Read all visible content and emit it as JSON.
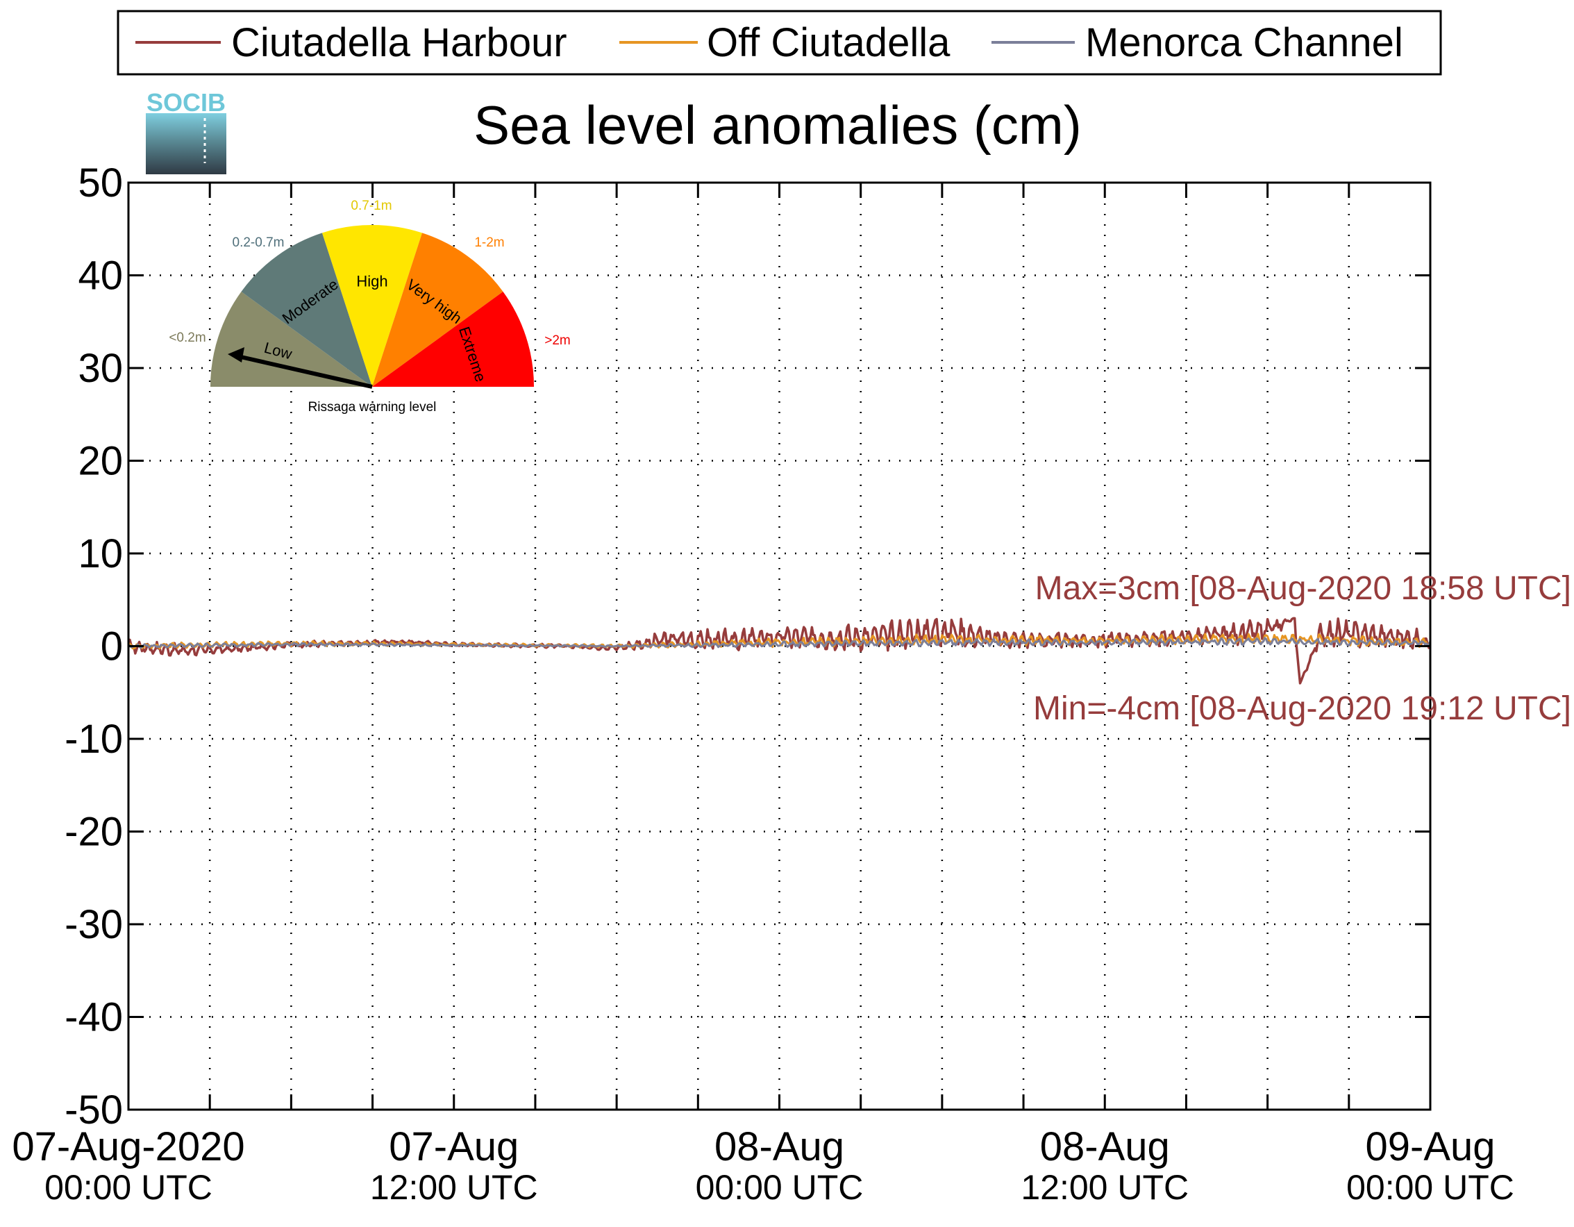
{
  "chart_data": {
    "type": "line",
    "title": "Sea level anomalies (cm)",
    "xlabel": "",
    "ylabel": "",
    "ylim": [
      -50,
      50
    ],
    "yticks": [
      50,
      40,
      30,
      20,
      10,
      0,
      -10,
      -20,
      -30,
      -40,
      -50
    ],
    "xlim": [
      "07-Aug-2020 00:00 UTC",
      "09-Aug-2020 00:00 UTC"
    ],
    "xtick_labels": [
      {
        "date": "07-Aug-2020",
        "time": "00:00 UTC"
      },
      {
        "date": "07-Aug",
        "time": "12:00 UTC"
      },
      {
        "date": "08-Aug",
        "time": "00:00 UTC"
      },
      {
        "date": "08-Aug",
        "time": "12:00 UTC"
      },
      {
        "date": "09-Aug",
        "time": "00:00 UTC"
      }
    ],
    "grid": true,
    "legend_position": "top",
    "series": [
      {
        "name": "Ciutadella Harbour",
        "color": "#963c3c",
        "x_hours": [
          0,
          2,
          4,
          6,
          8,
          10,
          12,
          14,
          16,
          18,
          20,
          22,
          24,
          26,
          28,
          30,
          32,
          34,
          36,
          38,
          40,
          42,
          42.97,
          43.2,
          44,
          46,
          48
        ],
        "y": [
          0,
          -0.5,
          -0.3,
          0.2,
          0.3,
          0.5,
          0.2,
          0.1,
          0,
          -0.2,
          0.8,
          0.6,
          1.0,
          0.9,
          1.1,
          1.8,
          0.8,
          0.6,
          0.7,
          0.9,
          1.2,
          1.6,
          3,
          -4,
          1.5,
          1.2,
          0.6
        ],
        "amplitude_cm": [
          0.8,
          0.7,
          0.4,
          0.4,
          0.3,
          0.2,
          0.2,
          0.2,
          0.2,
          0.3,
          1.2,
          1.3,
          1.3,
          1.4,
          1.6,
          2.0,
          1.0,
          0.9,
          0.9,
          0.9,
          1.1,
          1.4,
          0,
          0,
          1.6,
          1.4,
          1.0
        ]
      },
      {
        "name": "Off Ciutadella",
        "color": "#e69523",
        "x_hours": [
          0,
          6,
          12,
          18,
          24,
          30,
          36,
          42,
          48
        ],
        "y": [
          0,
          0.3,
          0.2,
          0,
          0.4,
          0.7,
          0.6,
          0.8,
          0.4
        ],
        "amplitude_cm": [
          0.3,
          0.3,
          0.2,
          0.2,
          0.5,
          0.6,
          0.5,
          0.6,
          0.5
        ]
      },
      {
        "name": "Menorca Channel",
        "color": "#7b7f99",
        "x_hours": [
          0,
          6,
          12,
          18,
          24,
          30,
          36,
          42,
          48
        ],
        "y": [
          0,
          0.2,
          0.1,
          0,
          0.2,
          0.4,
          0.4,
          0.5,
          0.3
        ],
        "amplitude_cm": [
          0.2,
          0.2,
          0.1,
          0.1,
          0.3,
          0.4,
          0.3,
          0.4,
          0.3
        ]
      }
    ],
    "annotations": {
      "max": "Max=3cm [08-Aug-2020 18:58 UTC]",
      "min": "Min=-4cm [08-Aug-2020 19:12 UTC]"
    }
  },
  "logo": {
    "text": "SOCIB"
  },
  "gauge": {
    "title": "Rissaga warning level",
    "needle_level": "Low",
    "sectors": [
      {
        "range": "<0.2m",
        "level": "Low",
        "color": "#8a8c6a",
        "range_color": "#7c7a5a"
      },
      {
        "range": "0.2-0.7m",
        "level": "Moderate",
        "color": "#5f7a78",
        "range_color": "#4f6f7a"
      },
      {
        "range": "0.7-1m",
        "level": "High",
        "color": "#ffe600",
        "range_color": "#e3c800"
      },
      {
        "range": "1-2m",
        "level": "Very high",
        "color": "#ff8000",
        "range_color": "#ff7f00"
      },
      {
        "range": ">2m",
        "level": "Extreme",
        "color": "#ff0000",
        "range_color": "#ee0000"
      }
    ]
  }
}
